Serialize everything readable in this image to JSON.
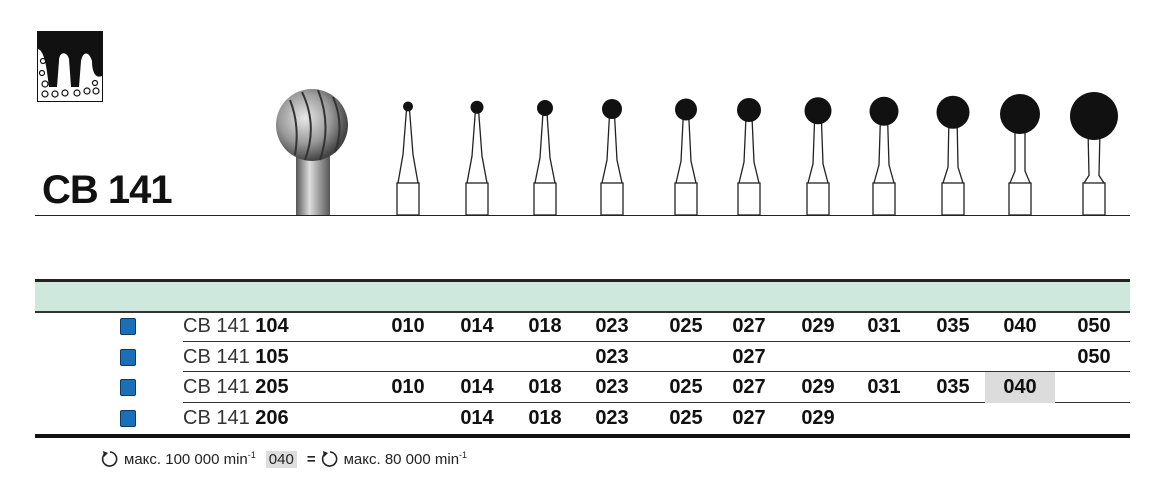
{
  "title": "CB 141",
  "sizes": [
    "010",
    "014",
    "018",
    "023",
    "025",
    "027",
    "029",
    "031",
    "035",
    "040",
    "050"
  ],
  "accent_color": "#1a6fb8",
  "band_color": "#cfe8de",
  "rows": [
    {
      "prefix": "CB 141",
      "suffix": "104",
      "values": [
        "010",
        "014",
        "018",
        "023",
        "025",
        "027",
        "029",
        "031",
        "035",
        "040",
        "050"
      ]
    },
    {
      "prefix": "CB 141",
      "suffix": "105",
      "values": [
        "",
        "",
        "",
        "023",
        "",
        "027",
        "",
        "",
        "",
        "",
        "050"
      ]
    },
    {
      "prefix": "CB 141",
      "suffix": "205",
      "values": [
        "010",
        "014",
        "018",
        "023",
        "025",
        "027",
        "029",
        "031",
        "035",
        "040",
        ""
      ],
      "highlight": "040"
    },
    {
      "prefix": "CB 141",
      "suffix": "206",
      "values": [
        "",
        "014",
        "018",
        "023",
        "025",
        "027",
        "029",
        "",
        "",
        "",
        ""
      ]
    }
  ],
  "footer": {
    "max_label_1": "макс. 100 000 min",
    "exp": "-1",
    "highlight_code": "040",
    "equals": "=",
    "max_label_2": "макс. 80 000 min",
    "icon": "rotation-icon"
  }
}
